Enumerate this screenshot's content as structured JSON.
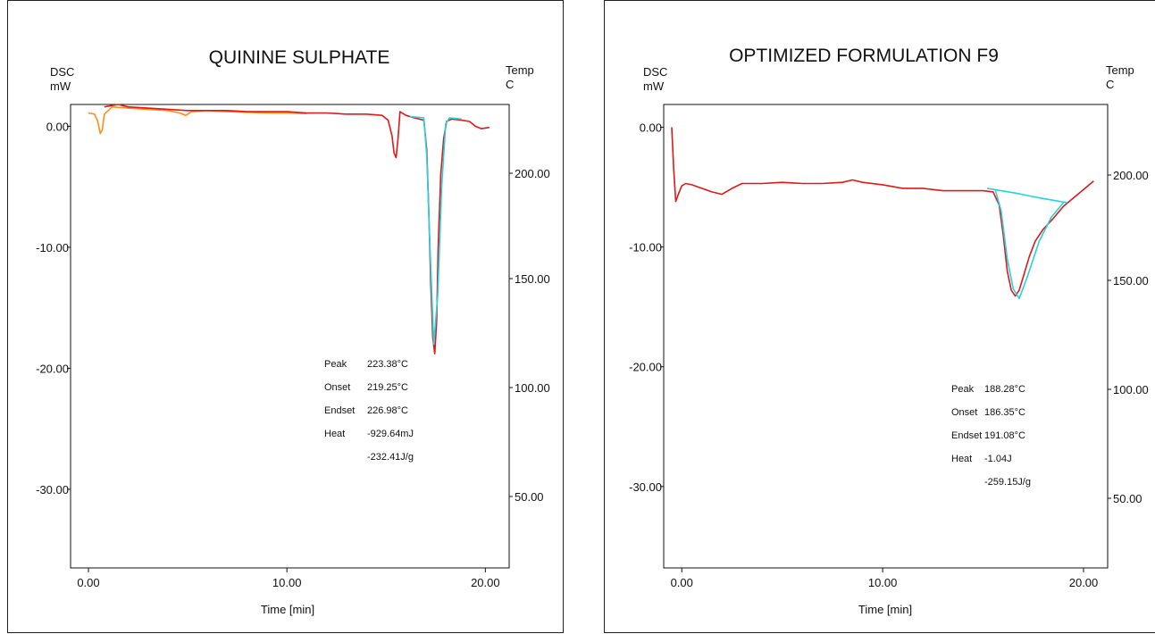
{
  "chart_data": [
    {
      "type": "line",
      "title": "QUININE SULPHATE",
      "left_axis_label": [
        "DSC",
        "mW"
      ],
      "right_axis_label": [
        "Temp",
        "C"
      ],
      "xlabel": "Time  [min]",
      "x_ticks": [
        "0.00",
        "10.00",
        "20.00"
      ],
      "y_ticks_left": [
        "0.00",
        "-10.00",
        "-20.00",
        "-30.00"
      ],
      "y_ticks_right": [
        "200.00",
        "150.00",
        "100.00",
        "50.00"
      ],
      "xlim": [
        -0.9,
        21.2
      ],
      "ylim": [
        -36.5,
        1.8
      ],
      "grid": false,
      "annotations": [
        [
          "Peak",
          "223.38°C"
        ],
        [
          "Onset",
          "219.25°C"
        ],
        [
          "Endset",
          "226.98°C"
        ],
        [
          "Heat",
          "-929.64mJ"
        ],
        [
          "",
          "-232.41J/g"
        ]
      ],
      "series": [
        {
          "color": "#ff8c1a",
          "x": [
            0.0,
            0.3,
            0.45,
            0.55,
            0.6,
            0.7,
            0.8,
            1.2,
            2.0,
            3.0,
            4.0,
            4.6,
            4.9,
            5.2,
            6.0,
            7.0,
            8.0,
            9.0,
            10.0,
            11.0
          ],
          "y": [
            1.1,
            1.0,
            0.5,
            -0.2,
            -0.6,
            -0.3,
            1.0,
            1.6,
            1.5,
            1.4,
            1.3,
            1.1,
            0.9,
            1.2,
            1.3,
            1.2,
            1.15,
            1.1,
            1.1,
            1.05
          ]
        },
        {
          "color": "#e01818",
          "x": [
            0.8,
            1.5,
            2.0,
            3.0,
            4.0,
            5.0,
            6.0,
            7.0,
            8.0,
            9.0,
            10.0,
            11.0,
            12.0,
            13.0,
            14.0,
            14.8,
            15.1,
            15.3,
            15.4,
            15.5,
            15.6,
            15.7,
            16.0,
            16.4,
            16.9,
            17.05,
            17.15,
            17.25,
            17.35,
            17.45,
            17.55,
            17.62,
            17.75,
            17.9,
            18.05,
            18.3,
            18.8,
            19.2,
            19.5,
            19.8,
            20.2
          ],
          "y": [
            1.6,
            1.8,
            1.6,
            1.5,
            1.4,
            1.3,
            1.3,
            1.3,
            1.2,
            1.2,
            1.2,
            1.1,
            1.1,
            1.0,
            1.0,
            0.9,
            0.5,
            -0.8,
            -2.2,
            -2.6,
            -1.0,
            1.2,
            0.9,
            0.7,
            0.5,
            -2.0,
            -7.0,
            -13.0,
            -17.5,
            -18.8,
            -16.0,
            -10.0,
            -4.0,
            -1.0,
            0.4,
            0.6,
            0.5,
            0.4,
            0.0,
            -0.2,
            -0.1
          ]
        },
        {
          "color": "#22d3e0",
          "x": [
            16.2,
            16.9,
            17.05,
            17.2,
            17.4,
            17.6,
            17.8,
            18.0,
            18.2,
            18.8
          ],
          "y": [
            0.8,
            0.7,
            -2.5,
            -9.5,
            -18.0,
            -14.0,
            -5.0,
            0.2,
            0.7,
            0.6
          ]
        }
      ]
    },
    {
      "type": "line",
      "title": "OPTIMIZED FORMULATION F9",
      "left_axis_label": [
        "DSC",
        "mW"
      ],
      "right_axis_label": [
        "Temp",
        "C"
      ],
      "xlabel": "Time  [min]",
      "x_ticks": [
        "0.00",
        "10.00",
        "20.00"
      ],
      "y_ticks_left": [
        "0.00",
        "-10.00",
        "-20.00",
        "-30.00"
      ],
      "y_ticks_right": [
        "200.00",
        "150.00",
        "100.00",
        "50.00"
      ],
      "xlim": [
        -0.9,
        21.2
      ],
      "ylim": [
        -36.8,
        1.9
      ],
      "grid": false,
      "annotations": [
        [
          "Peak",
          "188.28°C"
        ],
        [
          "Onset",
          "186.35°C"
        ],
        [
          "Endset",
          "191.08°C"
        ],
        [
          "Heat",
          "-1.04J"
        ],
        [
          "",
          "-259.15J/g"
        ]
      ],
      "series": [
        {
          "color": "#e01818",
          "x": [
            -0.5,
            -0.4,
            -0.3,
            -0.15,
            0.0,
            0.2,
            0.5,
            1.0,
            1.5,
            2.0,
            2.5,
            3.0,
            4.0,
            5.0,
            6.0,
            7.0,
            8.0,
            8.5,
            9.0,
            10.0,
            11.0,
            12.0,
            13.0,
            14.0,
            15.0,
            15.5,
            15.8,
            16.0,
            16.2,
            16.4,
            16.6,
            16.8,
            17.0,
            17.3,
            17.6,
            18.0,
            18.5,
            19.0,
            19.5,
            20.0,
            20.5
          ],
          "y": [
            0.0,
            -3.5,
            -6.2,
            -5.5,
            -4.9,
            -4.7,
            -4.8,
            -5.1,
            -5.4,
            -5.6,
            -5.1,
            -4.7,
            -4.7,
            -4.6,
            -4.7,
            -4.7,
            -4.6,
            -4.4,
            -4.6,
            -4.8,
            -5.1,
            -5.1,
            -5.3,
            -5.3,
            -5.3,
            -5.4,
            -6.5,
            -9.0,
            -12.0,
            -13.6,
            -14.1,
            -13.6,
            -12.5,
            -10.8,
            -9.5,
            -8.5,
            -7.6,
            -6.6,
            -5.9,
            -5.2,
            -4.5
          ]
        },
        {
          "color": "#22d3e0",
          "x": [
            15.2,
            16.6,
            17.2,
            17.8,
            18.5,
            19.2
          ],
          "y": [
            -5.1,
            -5.5,
            -5.7,
            -5.9,
            -6.1,
            -6.3
          ]
        },
        {
          "color": "#22d3e0",
          "x": [
            15.6,
            15.9,
            16.2,
            16.5,
            16.8,
            17.2,
            17.8,
            18.4,
            19.0
          ],
          "y": [
            -5.2,
            -7.0,
            -11.0,
            -13.5,
            -14.3,
            -12.5,
            -9.5,
            -7.5,
            -6.3
          ]
        }
      ]
    }
  ]
}
